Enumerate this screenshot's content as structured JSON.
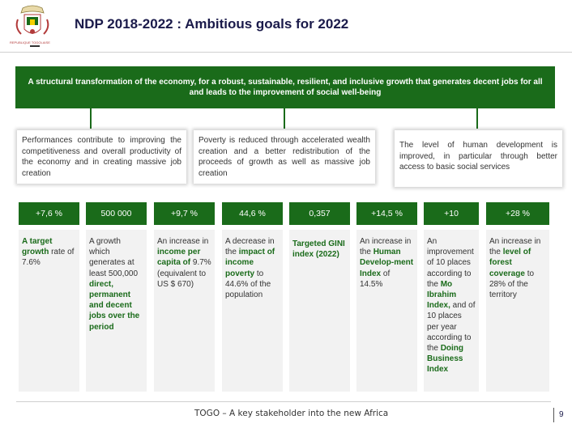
{
  "header": {
    "title": "NDP 2018-2022 : Ambitious goals for 2022",
    "logo_caption": "REPUBLIQUE TOGOLAISE"
  },
  "banner": {
    "text": "A structural transformation of the economy, for a robust, sustainable, resilient, and inclusive growth that generates decent jobs for all and leads to the improvement of social well-being"
  },
  "pillars": [
    {
      "text": "Performances contribute to improving the competitiveness and overall productivity of the economy and in creating massive job creation"
    },
    {
      "text": "Poverty is reduced through accelerated wealth creation and a better redistribution of the proceeds of growth as well as massive job creation"
    },
    {
      "text": "The level of human development is improved, in particular through better access to basic social services"
    }
  ],
  "targets": [
    {
      "value": "+7,6 %",
      "parts": [
        {
          "t": "A target",
          "b": true
        },
        {
          "t": " "
        },
        {
          "t": "growth",
          "b": true
        },
        {
          "t": " rate of 7.6%"
        }
      ]
    },
    {
      "value": "500 000",
      "parts": [
        {
          "t": "A growth which generates at least 500,000 "
        },
        {
          "t": "direct, permanent and decent jobs over the period",
          "b": true
        }
      ]
    },
    {
      "value": "+9,7 %",
      "parts": [
        {
          "t": "An increase in "
        },
        {
          "t": "income per capita of",
          "b": true
        },
        {
          "t": " 9.7% (equivalent to US $ 670)"
        }
      ]
    },
    {
      "value": "44,6 %",
      "parts": [
        {
          "t": "A decrease in the "
        },
        {
          "t": "impact of income poverty",
          "b": true
        },
        {
          "t": " to 44.6% of the population"
        }
      ]
    },
    {
      "value": "0,357",
      "parts": [
        {
          "t": "Targeted GINI index (2022)",
          "b": true
        }
      ]
    },
    {
      "value": "+14,5 %",
      "parts": [
        {
          "t": "An increase in the "
        },
        {
          "t": "Human Develop-ment Index",
          "b": true
        },
        {
          "t": " of 14.5%"
        }
      ]
    },
    {
      "value": "+10",
      "parts": [
        {
          "t": "An improvement of 10 places according to the "
        },
        {
          "t": "Mo Ibrahim Index,",
          "b": true
        },
        {
          "t": " and of 10 places per year according to the "
        },
        {
          "t": "Doing Business Index",
          "b": true
        }
      ]
    },
    {
      "value": "+28 %",
      "parts": [
        {
          "t": "An increase in the "
        },
        {
          "t": "level of forest coverage",
          "b": true
        },
        {
          "t": " to 28% of the territory"
        }
      ]
    }
  ],
  "footer": {
    "text": "TOGO – A key stakeholder into the new Africa",
    "page": "9"
  },
  "colors": {
    "accent": "#1a6b1a",
    "title": "#1a1a4a",
    "panel": "#f2f2f2"
  }
}
